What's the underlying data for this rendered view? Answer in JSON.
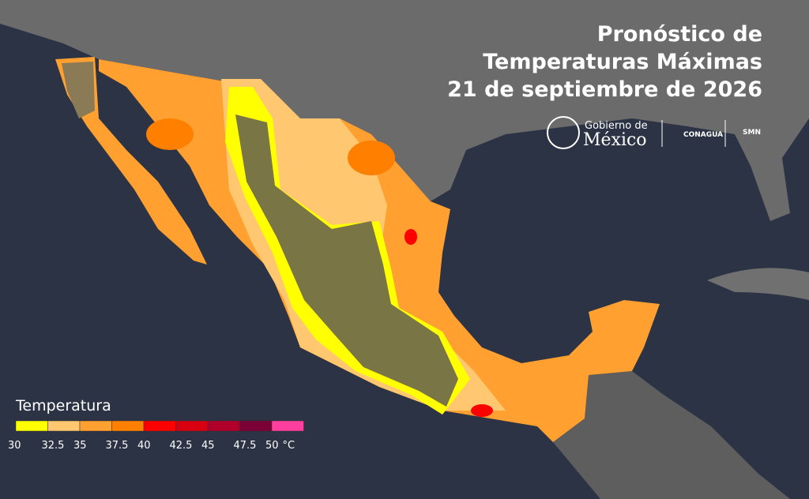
{
  "header": {
    "title_lines": [
      "Pronóstico de",
      "Temperaturas Máximas",
      "21 de septiembre de 2026"
    ]
  },
  "logos": {
    "gobierno_small": "Gobierno de",
    "gobierno_big": "México",
    "conagua": "CONAGUA",
    "smn": "SMN"
  },
  "legend": {
    "title": "Temperatura",
    "unit": "°C",
    "labels": [
      "30",
      "32.5",
      "35",
      "37.5",
      "40",
      "42.5",
      "45",
      "47.5",
      "50"
    ],
    "colors": [
      "#ffff00",
      "#ffc870",
      "#ffa030",
      "#ff7f00",
      "#ff0000",
      "#d80010",
      "#b0002a",
      "#7a0036",
      "#ff3fa0"
    ]
  }
}
